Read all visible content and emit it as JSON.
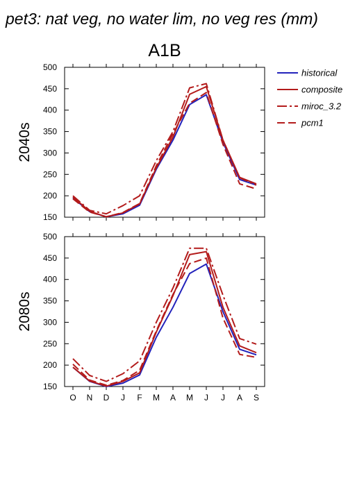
{
  "figure": {
    "title": "pet3: nat veg, no water lim, no veg res (mm)",
    "scenario": "A1B"
  },
  "colors": {
    "historical": "#2222bb",
    "composite": "#b31b1b",
    "miroc_3.2": "#b31b1b",
    "pcm1": "#b31b1b",
    "axes": "#000000"
  },
  "legend": {
    "items": [
      {
        "label": "historical",
        "style": "solid",
        "color": "#2222bb"
      },
      {
        "label": "composite",
        "style": "solid",
        "color": "#b31b1b"
      },
      {
        "label": "miroc_3.2",
        "style": "dashdot",
        "color": "#b31b1b"
      },
      {
        "label": "pcm1",
        "style": "dashed",
        "color": "#b31b1b"
      }
    ]
  },
  "chart_data": [
    {
      "type": "line",
      "row_label": "2040s",
      "categories": [
        "O",
        "N",
        "D",
        "J",
        "F",
        "M",
        "A",
        "M",
        "J",
        "J",
        "A",
        "S"
      ],
      "ylim": [
        150,
        500
      ],
      "yticks": [
        150,
        200,
        250,
        300,
        350,
        400,
        450,
        500
      ],
      "series": [
        {
          "name": "historical",
          "style": "solid",
          "values": [
            195,
            163,
            151,
            158,
            178,
            262,
            330,
            413,
            436,
            325,
            238,
            225
          ]
        },
        {
          "name": "composite",
          "style": "solid",
          "values": [
            197,
            164,
            151,
            160,
            181,
            265,
            337,
            437,
            455,
            330,
            243,
            228
          ]
        },
        {
          "name": "miroc_3.2",
          "style": "dashdot",
          "values": [
            200,
            166,
            158,
            177,
            200,
            282,
            350,
            452,
            462,
            330,
            242,
            225
          ]
        },
        {
          "name": "pcm1",
          "style": "dashed",
          "values": [
            193,
            162,
            151,
            161,
            182,
            270,
            345,
            416,
            441,
            320,
            228,
            216
          ]
        }
      ]
    },
    {
      "type": "line",
      "row_label": "2080s",
      "categories": [
        "O",
        "N",
        "D",
        "J",
        "F",
        "M",
        "A",
        "M",
        "J",
        "J",
        "A",
        "S"
      ],
      "ylim": [
        150,
        500
      ],
      "yticks": [
        150,
        200,
        250,
        300,
        350,
        400,
        450,
        500
      ],
      "series": [
        {
          "name": "historical",
          "style": "solid",
          "values": [
            195,
            162,
            150,
            158,
            177,
            265,
            335,
            414,
            436,
            325,
            237,
            224
          ]
        },
        {
          "name": "composite",
          "style": "solid",
          "values": [
            195,
            163,
            151,
            162,
            182,
            277,
            362,
            458,
            465,
            335,
            245,
            229
          ]
        },
        {
          "name": "miroc_3.2",
          "style": "dashdot",
          "values": [
            215,
            176,
            162,
            180,
            210,
            300,
            380,
            473,
            473,
            363,
            262,
            249
          ]
        },
        {
          "name": "pcm1",
          "style": "dashed",
          "values": [
            202,
            165,
            153,
            164,
            188,
            280,
            365,
            437,
            450,
            310,
            225,
            218
          ]
        }
      ]
    }
  ]
}
